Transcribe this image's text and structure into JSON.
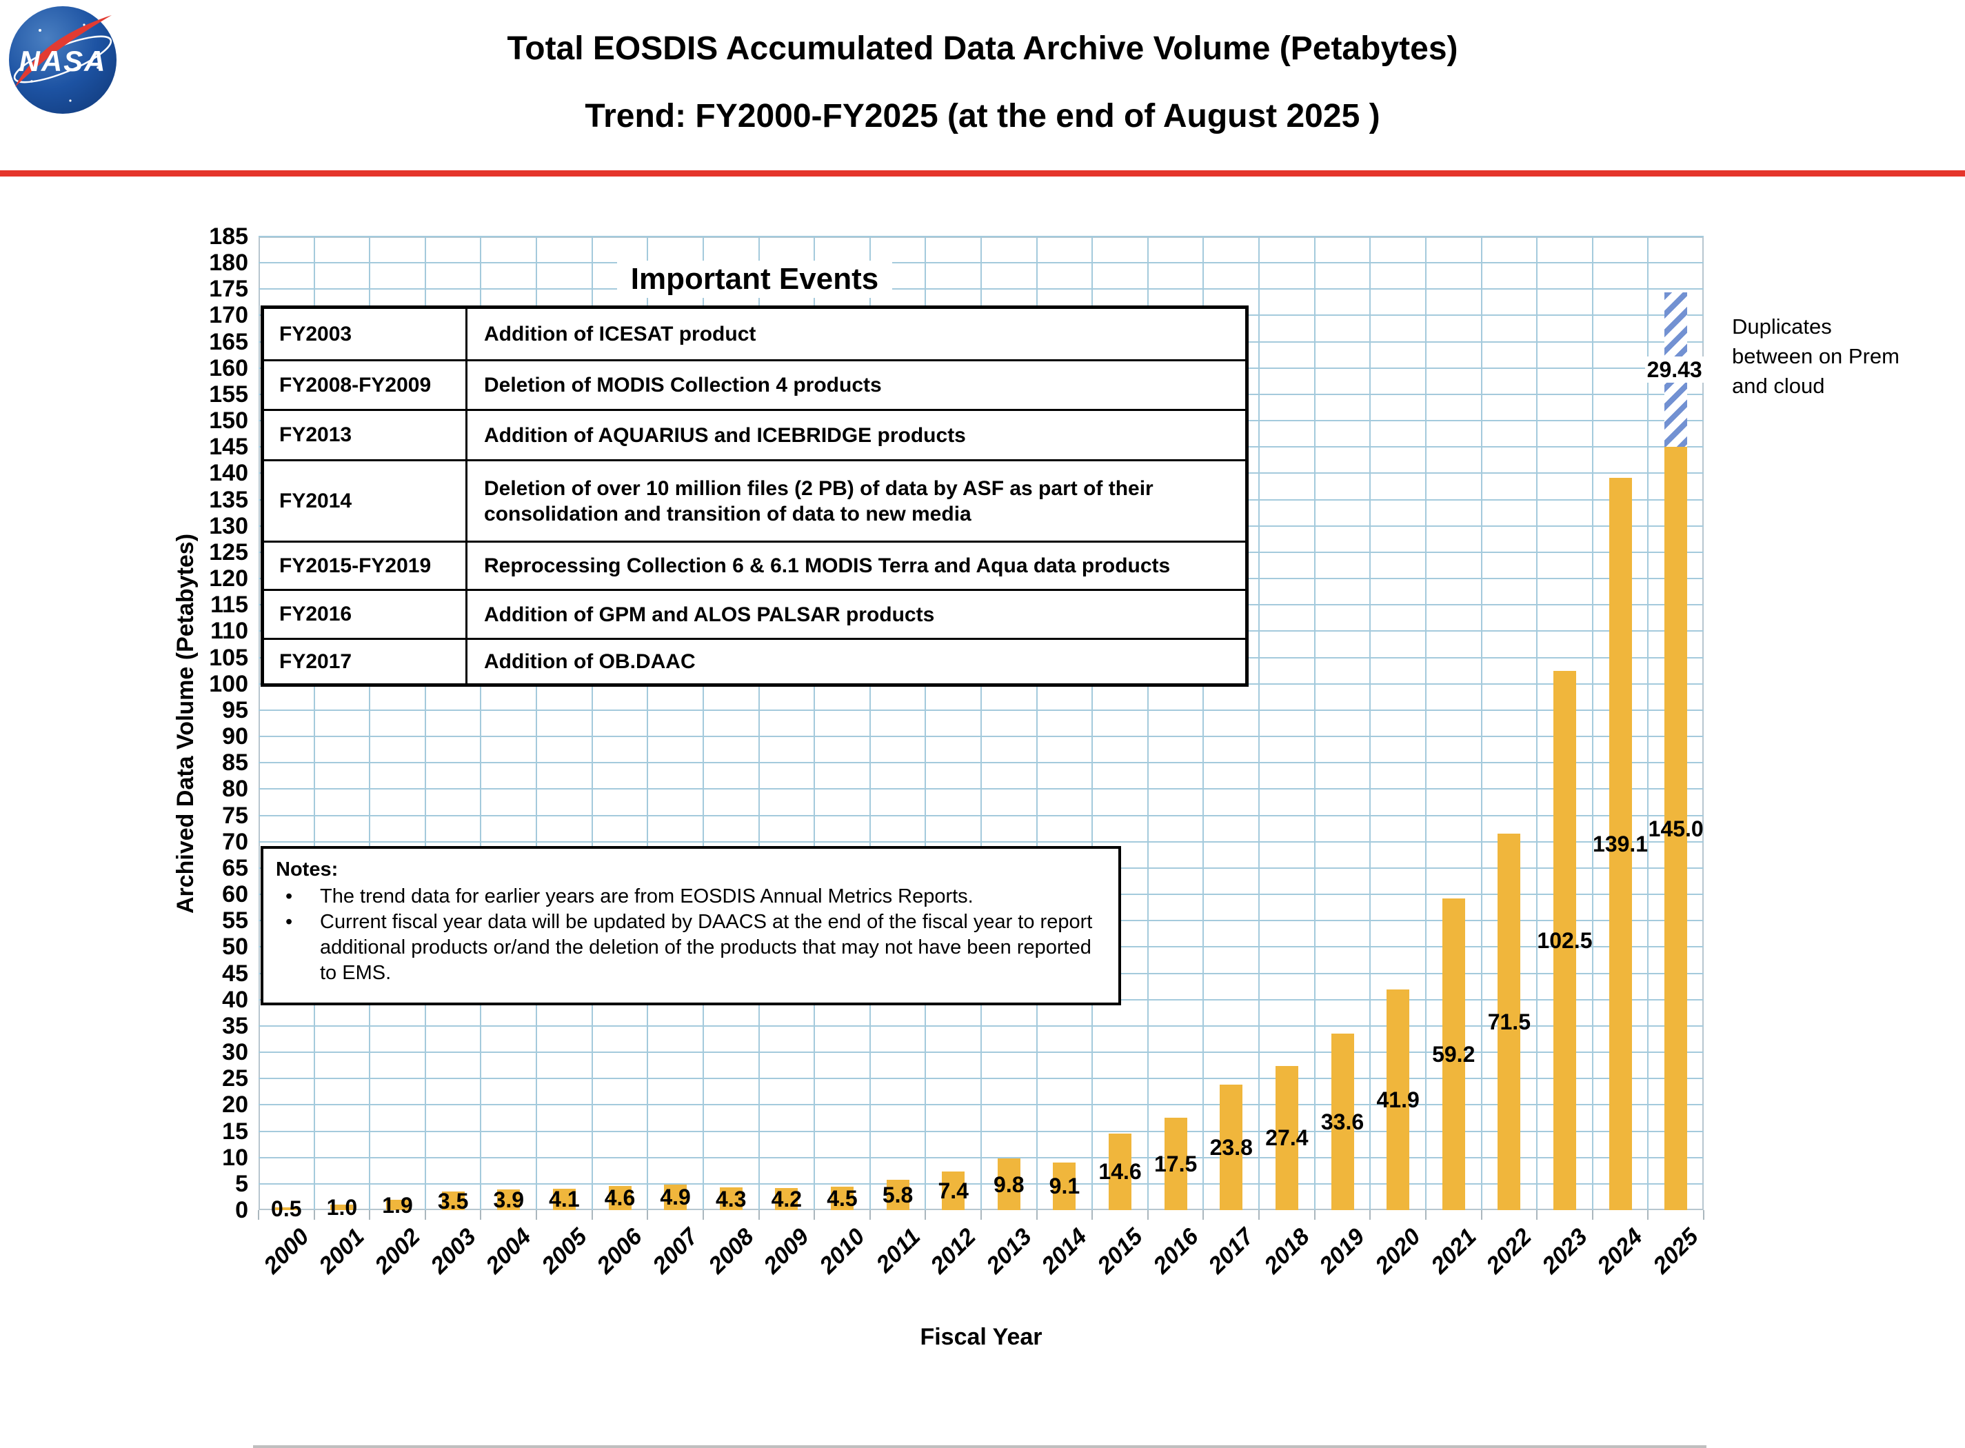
{
  "header": {
    "logo_text": "NASA",
    "title_line1": "Total EOSDIS Accumulated Data Archive Volume (Petabytes)",
    "title_line2": "Trend: FY2000-FY2025 (at the end of August 2025 )",
    "accent_color": "#E5352B"
  },
  "chart_data": {
    "type": "bar",
    "title": "Total EOSDIS Accumulated Data Archive Volume (Petabytes)",
    "subtitle": "Trend: FY2000-FY2025 (at the end of August 2025 )",
    "xlabel": "Fiscal Year",
    "ylabel": "Archived Data Volume (Petabytes)",
    "ylim": [
      0,
      185
    ],
    "ytick_step": 5,
    "grid": true,
    "legend_position": "none",
    "bar_color": "#F0B63C",
    "gridline_color": "#A4CADC",
    "categories": [
      "2000",
      "2001",
      "2002",
      "2003",
      "2004",
      "2005",
      "2006",
      "2007",
      "2008",
      "2009",
      "2010",
      "2011",
      "2012",
      "2013",
      "2014",
      "2015",
      "2016",
      "2017",
      "2018",
      "2019",
      "2020",
      "2021",
      "2022",
      "2023",
      "2024",
      "2025"
    ],
    "series": [
      {
        "name": "accumulated_archive_volume_pb",
        "color": "#F0B63C",
        "values": [
          0.5,
          1.0,
          1.9,
          3.5,
          3.9,
          4.1,
          4.6,
          4.9,
          4.3,
          4.2,
          4.5,
          5.8,
          7.4,
          9.8,
          9.1,
          14.6,
          17.5,
          23.8,
          27.4,
          33.6,
          41.9,
          59.2,
          71.5,
          102.5,
          139.1,
          145.0
        ],
        "labels": [
          "0.5",
          "1.0",
          "1.9",
          "3.5",
          "3.9",
          "4.1",
          "4.6",
          "4.9",
          "4.3",
          "4.2",
          "4.5",
          "5.8",
          "7.4",
          "9.8",
          "9.1",
          "14.6",
          "17.5",
          "23.8",
          "27.4",
          "33.6",
          "41.9",
          "59.2",
          "71.5",
          "102.5",
          "139.1",
          "145.0"
        ]
      },
      {
        "name": "duplicates_on_prem_and_cloud",
        "style": "hatched",
        "color": "#7291D2",
        "category": "2025",
        "value": 29.43,
        "label": "29.43"
      }
    ],
    "annotation": "Duplicates between on Prem and cloud"
  },
  "events_table": {
    "heading": "Important Events",
    "rows": [
      {
        "period": "FY2003",
        "description": "Addition of ICESAT product"
      },
      {
        "period": "FY2008-FY2009",
        "description": "Deletion of  MODIS Collection 4 products"
      },
      {
        "period": "FY2013",
        "description": "Addition of AQUARIUS and ICEBRIDGE products"
      },
      {
        "period": "FY2014",
        "description": "Deletion of over 10 million files (2 PB) of data by ASF as part of their consolidation and transition of data to new media"
      },
      {
        "period": "FY2015-FY2019",
        "description": "Reprocessing  Collection 6 & 6.1 MODIS Terra and Aqua data products"
      },
      {
        "period": "FY2016",
        "description": "Addition of GPM and ALOS PALSAR products"
      },
      {
        "period": "FY2017",
        "description": "Addition of OB.DAAC"
      }
    ]
  },
  "notes": {
    "heading": "Notes:",
    "bullets": [
      "The trend data for earlier years are from EOSDIS Annual Metrics Reports.",
      "Current fiscal year data will be updated by DAACS at the end of the fiscal year to report additional products or/and the deletion of the products that may not have been reported to EMS."
    ]
  }
}
